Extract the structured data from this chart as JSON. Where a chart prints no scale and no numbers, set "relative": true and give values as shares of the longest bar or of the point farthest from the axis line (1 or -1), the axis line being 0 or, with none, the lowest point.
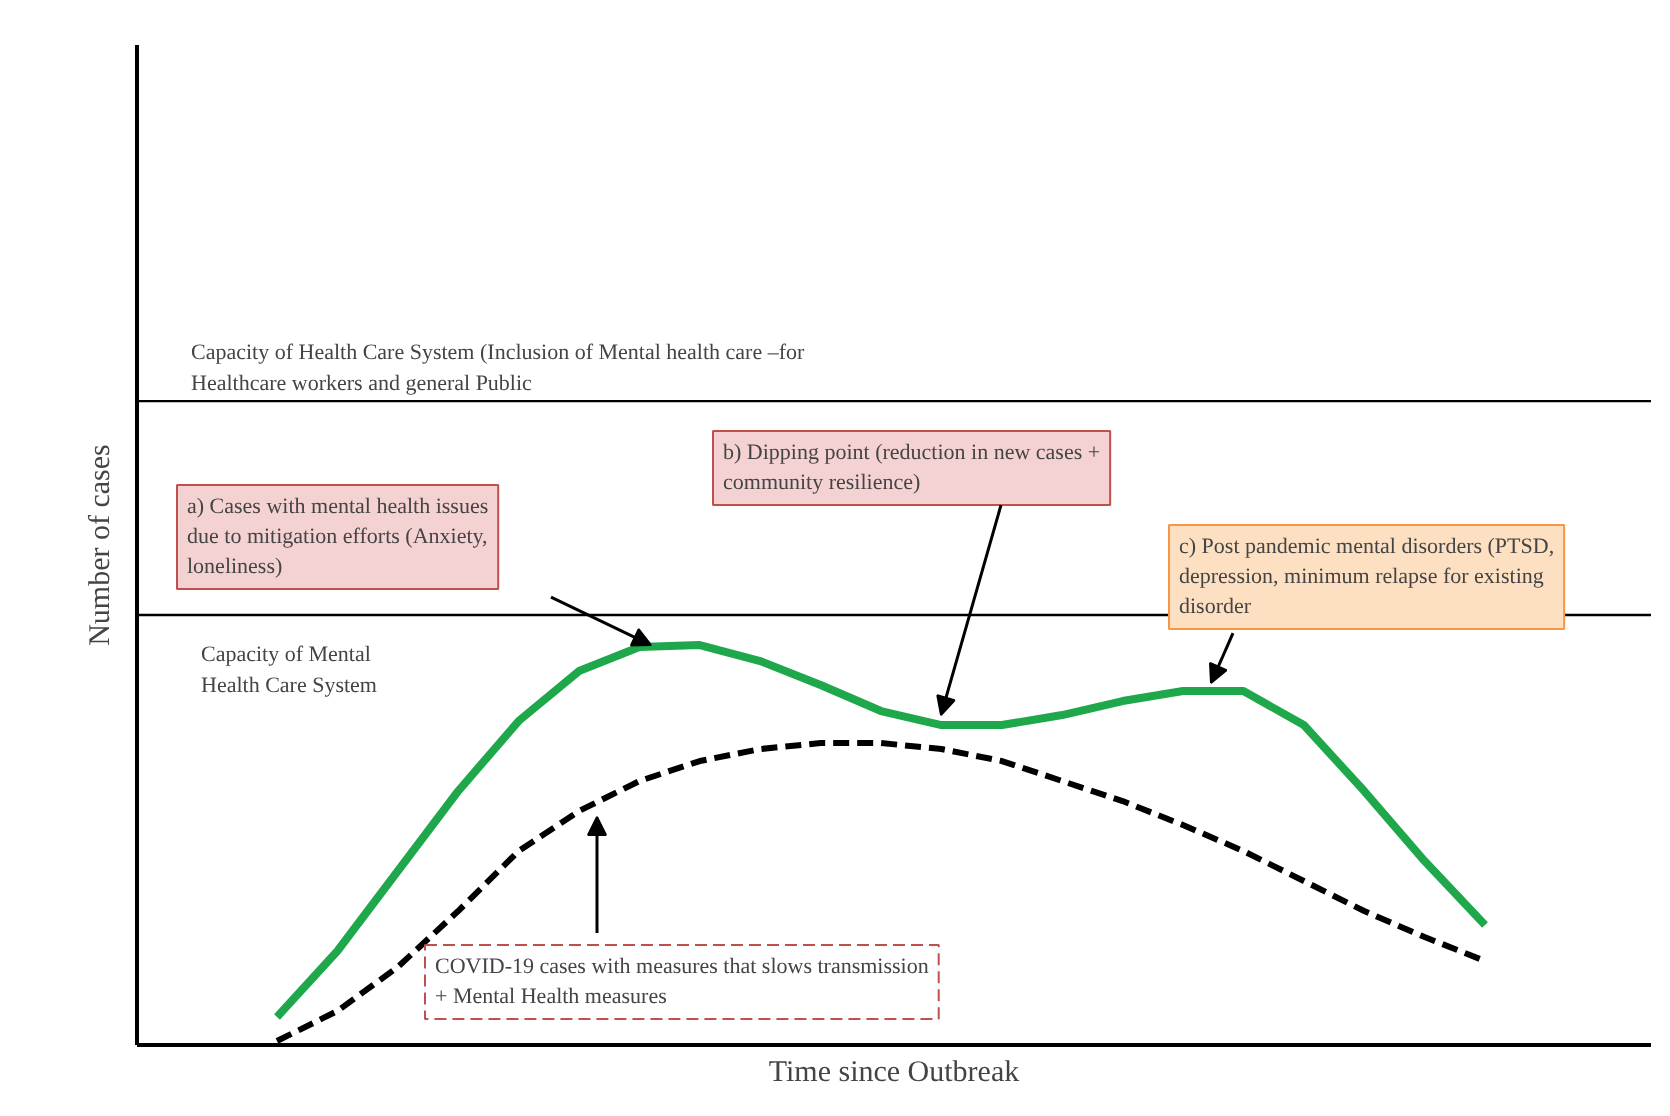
{
  "chart_data": {
    "type": "line",
    "relative": true,
    "xlabel": "Time since Outbreak",
    "ylabel": "Number of cases",
    "categories": [
      null,
      null,
      null,
      null,
      null,
      null,
      null,
      null,
      null,
      null,
      null,
      null,
      null,
      null,
      null,
      null,
      null,
      null,
      null,
      null,
      null
    ],
    "series": [
      {
        "color": "#1fa84b",
        "line_style": "solid",
        "values": [
          0.07,
          0.235,
          0.435,
          0.635,
          0.81,
          0.935,
          0.995,
          1.0,
          0.96,
          0.9,
          0.835,
          0.8,
          0.8,
          0.825,
          0.86,
          0.885,
          0.885,
          0.8,
          0.635,
          0.46,
          0.3
        ]
      },
      {
        "color": "#000000",
        "line_style": "dashed",
        "values": [
          0.01,
          0.085,
          0.195,
          0.335,
          0.485,
          0.585,
          0.66,
          0.71,
          0.74,
          0.755,
          0.755,
          0.74,
          0.71,
          0.66,
          0.61,
          0.55,
          0.485,
          0.41,
          0.335,
          0.27,
          0.21
        ]
      }
    ],
    "ref_lines": [
      {
        "axis": "y",
        "value": 1.61,
        "label": "Capacity of Health Care System (Inclusion of Mental health care –for Healthcare workers and general Public",
        "color": "#000000"
      },
      {
        "axis": "y",
        "value": 1.075,
        "label": "Capacity of Mental Health Care System",
        "color": "#000000"
      }
    ],
    "annotations": [
      "a) Cases with mental health issues due to mitigation efforts (Anxiety, loneliness)",
      "b) Dipping point (reduction in new cases + community resilience)",
      "c) Post pandemic mental disorders (PTSD, depression, minimum relapse for existing disorder",
      "COVID-19 cases with measures that slows transmission + Mental Health  measures"
    ],
    "grid": false
  }
}
